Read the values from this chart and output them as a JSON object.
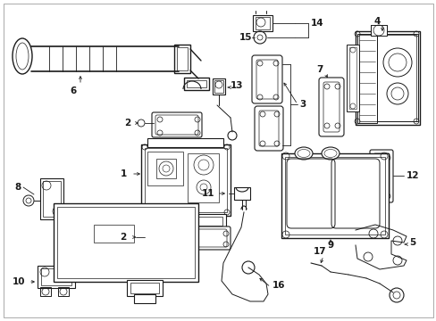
{
  "bg_color": "#ffffff",
  "lc": "#1a1a1a",
  "lw": 0.7,
  "figsize": [
    4.89,
    3.6
  ],
  "dpi": 100,
  "label_fs": 7.5
}
